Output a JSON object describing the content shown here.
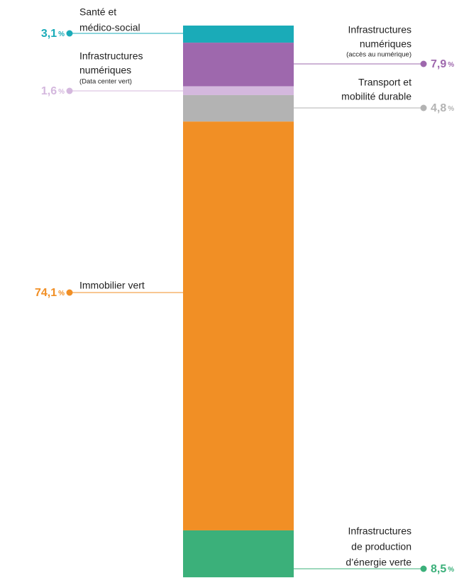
{
  "chart_data": {
    "type": "stacked-bar",
    "unit": "%",
    "series": [
      {
        "name_lines": [
          "Santé et",
          "médico-social"
        ],
        "color": "#1aabb8",
        "values": [
          3.1
        ],
        "value_labels": [
          "3,1"
        ],
        "side": "left"
      },
      {
        "name_lines": [
          "Infrastructures",
          "numériques"
        ],
        "note": "(accès au numérique)",
        "color": "#9e68ad",
        "values": [
          7.9
        ],
        "value_labels": [
          "7,9"
        ],
        "side": "right"
      },
      {
        "name_lines": [
          "Infrastructures",
          "numériques"
        ],
        "note": "(Data center vert)",
        "color": "#d4b8de",
        "values": [
          1.6
        ],
        "value_labels": [
          "1,6"
        ],
        "side": "left"
      },
      {
        "name_lines": [
          "Transport et",
          "mobilité durable"
        ],
        "color": "#b3b3b3",
        "values": [
          4.8
        ],
        "value_labels": [
          "4,8"
        ],
        "side": "right"
      },
      {
        "name_lines": [
          "Immobilier vert"
        ],
        "color": "#f18f25",
        "values": [
          74.1
        ],
        "value_labels": [
          "74,1"
        ],
        "side": "left"
      },
      {
        "name_lines": [
          "Infrastructures",
          "de production",
          "d’énergie verte"
        ],
        "color": "#3bb07a",
        "values": [
          8.5
        ],
        "value_labels": [
          "8,5"
        ],
        "side": "right"
      }
    ],
    "ylim": [
      0,
      100
    ]
  }
}
